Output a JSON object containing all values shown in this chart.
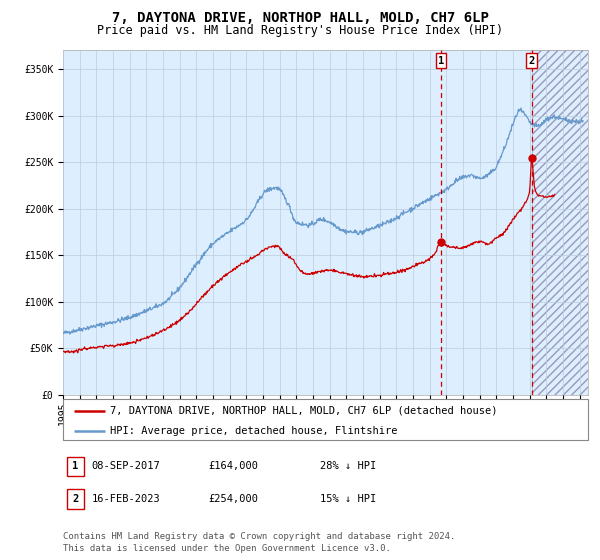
{
  "title": "7, DAYTONA DRIVE, NORTHOP HALL, MOLD, CH7 6LP",
  "subtitle": "Price paid vs. HM Land Registry's House Price Index (HPI)",
  "ylim": [
    0,
    370000
  ],
  "yticks": [
    0,
    50000,
    100000,
    150000,
    200000,
    250000,
    300000,
    350000
  ],
  "ytick_labels": [
    "£0",
    "£50K",
    "£100K",
    "£150K",
    "£200K",
    "£250K",
    "£300K",
    "£350K"
  ],
  "xlim_start": 1995.0,
  "xlim_end": 2026.5,
  "xtick_years": [
    1995,
    1996,
    1997,
    1998,
    1999,
    2000,
    2001,
    2002,
    2003,
    2004,
    2005,
    2006,
    2007,
    2008,
    2009,
    2010,
    2011,
    2012,
    2013,
    2014,
    2015,
    2016,
    2017,
    2018,
    2019,
    2020,
    2021,
    2022,
    2023,
    2024,
    2025,
    2026
  ],
  "hpi_color": "#6699cc",
  "price_color": "#cc0000",
  "bg_color": "#ddeeff",
  "hatch_color": "#9999bb",
  "grid_color": "#bbccdd",
  "marker1_x": 2017.69,
  "marker1_y": 164000,
  "marker2_x": 2023.12,
  "marker2_y": 254000,
  "legend_label_red": "7, DAYTONA DRIVE, NORTHOP HALL, MOLD, CH7 6LP (detached house)",
  "legend_label_blue": "HPI: Average price, detached house, Flintshire",
  "table_row1": [
    "1",
    "08-SEP-2017",
    "£164,000",
    "28% ↓ HPI"
  ],
  "table_row2": [
    "2",
    "16-FEB-2023",
    "£254,000",
    "15% ↓ HPI"
  ],
  "footnote": "Contains HM Land Registry data © Crown copyright and database right 2024.\nThis data is licensed under the Open Government Licence v3.0.",
  "title_fontsize": 10,
  "subtitle_fontsize": 8.5,
  "tick_fontsize": 7,
  "legend_fontsize": 7.5,
  "table_fontsize": 7.5,
  "footnote_fontsize": 6.5
}
